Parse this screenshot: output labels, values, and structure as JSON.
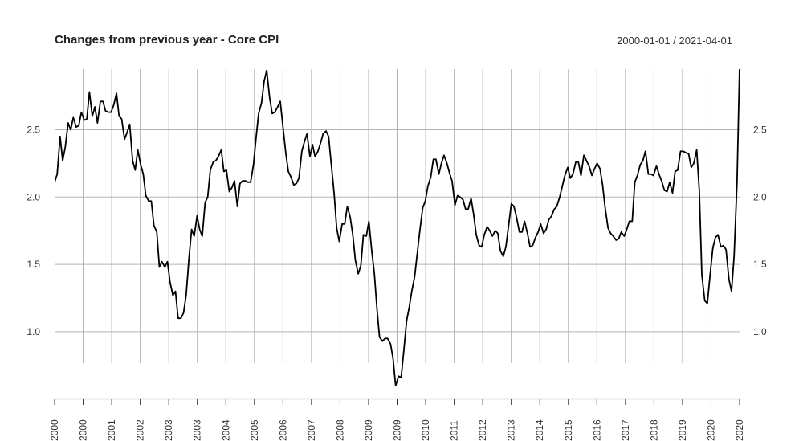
{
  "chart_data": {
    "type": "line",
    "title": "Changes from previous year - Core CPI",
    "date_range": "2000-01-01 / 2021-04-01",
    "ylim": [
      0.6,
      2.95
    ],
    "y_ticks": [
      "1.0",
      "1.5",
      "2.0",
      "2.5"
    ],
    "x_tick_labels": [
      "2000",
      "2000",
      "2001",
      "2002",
      "2003",
      "2003",
      "2004",
      "2005",
      "2006",
      "2007",
      "2008",
      "2009",
      "2009",
      "2010",
      "2011",
      "2012",
      "2013",
      "2014",
      "2015",
      "2016",
      "2017",
      "2018",
      "2019",
      "2020",
      "2020"
    ],
    "grid": true,
    "line_color": "#000000",
    "series": [
      {
        "x": [
          2000.0,
          2000.08,
          2000.17,
          2000.25,
          2000.33,
          2000.42,
          2000.5,
          2000.58,
          2000.67,
          2000.75,
          2000.83,
          2000.92,
          2001.0,
          2001.08,
          2001.17,
          2001.25,
          2001.33,
          2001.42,
          2001.5,
          2001.58,
          2001.67,
          2001.75,
          2001.83,
          2001.92,
          2002.0,
          2002.08,
          2002.17,
          2002.25,
          2002.33,
          2002.42,
          2002.5,
          2002.58,
          2002.67,
          2002.75,
          2002.83,
          2002.92,
          2003.0,
          2003.08,
          2003.17,
          2003.25,
          2003.33,
          2003.42,
          2003.5,
          2003.58,
          2003.67,
          2003.75,
          2003.83,
          2003.92,
          2004.0,
          2004.08,
          2004.17,
          2004.25,
          2004.33,
          2004.42,
          2004.5,
          2004.58,
          2004.67,
          2004.75,
          2004.83,
          2004.92,
          2005.0,
          2005.08,
          2005.17,
          2005.25,
          2005.33,
          2005.42,
          2005.5,
          2005.58,
          2005.67,
          2005.75,
          2005.83,
          2005.92,
          2006.0,
          2006.08,
          2006.17,
          2006.25,
          2006.33,
          2006.42,
          2006.5,
          2006.58,
          2006.67,
          2006.75,
          2006.83,
          2006.92,
          2007.0,
          2007.08,
          2007.17,
          2007.25,
          2007.33,
          2007.42,
          2007.5,
          2007.58,
          2007.67,
          2007.75,
          2007.83,
          2007.92,
          2008.0,
          2008.08,
          2008.17,
          2008.25,
          2008.33,
          2008.42,
          2008.5,
          2008.58,
          2008.67,
          2008.75,
          2008.83,
          2008.92,
          2009.0,
          2009.08,
          2009.17,
          2009.25,
          2009.33,
          2009.42,
          2009.5,
          2009.58,
          2009.67,
          2009.75,
          2009.83,
          2009.92,
          2010.0,
          2010.08,
          2010.17,
          2010.25,
          2010.33,
          2010.42,
          2010.5,
          2010.58,
          2010.67,
          2010.75,
          2010.83,
          2010.92,
          2011.0,
          2011.08,
          2011.17,
          2011.25,
          2011.33,
          2011.42,
          2011.5,
          2011.58,
          2011.67,
          2011.75,
          2011.83,
          2011.92,
          2012.0,
          2012.08,
          2012.17,
          2012.25,
          2012.33,
          2012.42,
          2012.5,
          2012.58,
          2012.67,
          2012.75,
          2012.83,
          2012.92,
          2013.0,
          2013.08,
          2013.17,
          2013.25,
          2013.33,
          2013.42,
          2013.5,
          2013.58,
          2013.67,
          2013.75,
          2013.83,
          2013.92,
          2014.0,
          2014.08,
          2014.17,
          2014.25,
          2014.33,
          2014.42,
          2014.5,
          2014.58,
          2014.67,
          2014.75,
          2014.83,
          2014.92,
          2015.0,
          2015.08,
          2015.17,
          2015.25,
          2015.33,
          2015.42,
          2015.5,
          2015.58,
          2015.67,
          2015.75,
          2015.83,
          2015.92,
          2016.0,
          2016.08,
          2016.17,
          2016.25,
          2016.33,
          2016.42,
          2016.5,
          2016.58,
          2016.67,
          2016.75,
          2016.83,
          2016.92,
          2017.0,
          2017.08,
          2017.17,
          2017.25,
          2017.33,
          2017.42,
          2017.5,
          2017.58,
          2017.67,
          2017.75,
          2017.83,
          2017.92,
          2018.0,
          2018.08,
          2018.17,
          2018.25,
          2018.33,
          2018.42,
          2018.5,
          2018.58,
          2018.67,
          2018.75,
          2018.83,
          2018.92,
          2019.0,
          2019.08,
          2019.17,
          2019.25,
          2019.33,
          2019.42,
          2019.5,
          2019.58,
          2019.67,
          2019.75,
          2019.83,
          2019.92,
          2020.0,
          2020.08,
          2020.17,
          2020.25,
          2020.33,
          2020.42,
          2020.5,
          2020.58,
          2020.67,
          2020.75,
          2020.83,
          2020.92,
          2021.0,
          2021.08,
          2021.17,
          2021.25
        ],
        "y": [
          2.11,
          2.17,
          2.45,
          2.27,
          2.37,
          2.55,
          2.5,
          2.59,
          2.52,
          2.53,
          2.63,
          2.57,
          2.58,
          2.78,
          2.6,
          2.67,
          2.55,
          2.71,
          2.71,
          2.64,
          2.63,
          2.63,
          2.68,
          2.77,
          2.6,
          2.58,
          2.43,
          2.48,
          2.54,
          2.27,
          2.2,
          2.35,
          2.24,
          2.17,
          2.01,
          1.97,
          1.97,
          1.79,
          1.74,
          1.48,
          1.52,
          1.48,
          1.52,
          1.37,
          1.27,
          1.3,
          1.1,
          1.1,
          1.14,
          1.27,
          1.55,
          1.76,
          1.71,
          1.86,
          1.76,
          1.71,
          1.96,
          2.0,
          2.2,
          2.26,
          2.27,
          2.3,
          2.35,
          2.19,
          2.2,
          2.04,
          2.07,
          2.12,
          1.93,
          2.1,
          2.12,
          2.12,
          2.11,
          2.11,
          2.24,
          2.44,
          2.62,
          2.7,
          2.86,
          2.94,
          2.74,
          2.62,
          2.63,
          2.67,
          2.71,
          2.53,
          2.33,
          2.19,
          2.15,
          2.09,
          2.1,
          2.14,
          2.34,
          2.41,
          2.47,
          2.3,
          2.39,
          2.3,
          2.34,
          2.4,
          2.47,
          2.49,
          2.45,
          2.25,
          2.03,
          1.77,
          1.67,
          1.8,
          1.8,
          1.93,
          1.85,
          1.72,
          1.53,
          1.43,
          1.49,
          1.72,
          1.71,
          1.82,
          1.62,
          1.43,
          1.17,
          0.96,
          0.93,
          0.95,
          0.95,
          0.91,
          0.8,
          0.6,
          0.67,
          0.66,
          0.85,
          1.08,
          1.18,
          1.3,
          1.41,
          1.58,
          1.75,
          1.92,
          1.97,
          2.08,
          2.15,
          2.28,
          2.28,
          2.17,
          2.25,
          2.31,
          2.25,
          2.18,
          2.12,
          1.94,
          2.01,
          2.0,
          1.98,
          1.91,
          1.91,
          1.99,
          1.87,
          1.72,
          1.64,
          1.63,
          1.72,
          1.78,
          1.75,
          1.71,
          1.75,
          1.73,
          1.6,
          1.56,
          1.63,
          1.78,
          1.95,
          1.93,
          1.85,
          1.74,
          1.74,
          1.82,
          1.73,
          1.63,
          1.64,
          1.7,
          1.74,
          1.8,
          1.73,
          1.76,
          1.83,
          1.86,
          1.91,
          1.93,
          2.0,
          2.08,
          2.16,
          2.22,
          2.14,
          2.17,
          2.26,
          2.26,
          2.16,
          2.31,
          2.27,
          2.23,
          2.16,
          2.21,
          2.25,
          2.21,
          2.09,
          1.92,
          1.77,
          1.73,
          1.71,
          1.68,
          1.69,
          1.74,
          1.71,
          1.76,
          1.82,
          1.82,
          2.11,
          2.16,
          2.24,
          2.27,
          2.34,
          2.17,
          2.17,
          2.16,
          2.23,
          2.17,
          2.12,
          2.05,
          2.04,
          2.11,
          2.03,
          2.19,
          2.2,
          2.34,
          2.34,
          2.33,
          2.32,
          2.22,
          2.25,
          2.35,
          2.05,
          1.42,
          1.23,
          1.21,
          1.41,
          1.62,
          1.7,
          1.72,
          1.63,
          1.64,
          1.61,
          1.39,
          1.3,
          1.56,
          2.1,
          2.96
        ]
      }
    ]
  }
}
